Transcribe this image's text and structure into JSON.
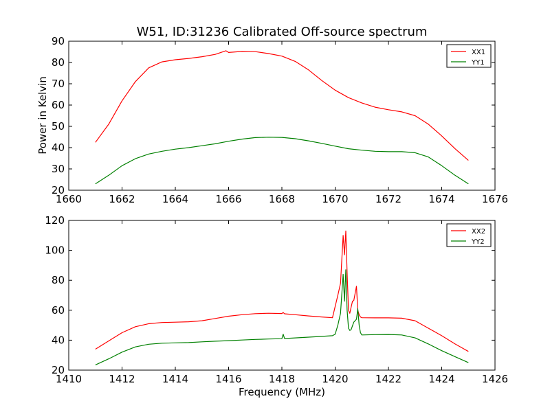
{
  "chart_data": [
    {
      "type": "line",
      "title": "W51, ID:31236 Calibrated Off-source spectrum",
      "xlabel": "",
      "ylabel": "Power in Kelvin",
      "xlim": [
        1660,
        1676
      ],
      "ylim": [
        20,
        90
      ],
      "xticks": [
        "1660",
        "1662",
        "1664",
        "1666",
        "1668",
        "1670",
        "1672",
        "1674",
        "1676"
      ],
      "yticks": [
        "20",
        "30",
        "40",
        "50",
        "60",
        "70",
        "80",
        "90"
      ],
      "grid": false,
      "legend_position": "top-right",
      "series": [
        {
          "name": "XX1",
          "color": "#ff0000",
          "x": [
            1661.0,
            1661.5,
            1662.0,
            1662.5,
            1663.0,
            1663.5,
            1664.0,
            1664.5,
            1665.0,
            1665.5,
            1665.9,
            1666.0,
            1666.5,
            1667.0,
            1667.5,
            1668.0,
            1668.5,
            1669.0,
            1669.5,
            1670.0,
            1670.5,
            1671.0,
            1671.5,
            1672.0,
            1672.5,
            1673.0,
            1673.5,
            1674.0,
            1674.5,
            1675.0
          ],
          "values": [
            42.5,
            51,
            62,
            71,
            77.5,
            80.3,
            81.3,
            81.9,
            82.7,
            83.8,
            85.5,
            84.7,
            85.2,
            85.1,
            84.2,
            83.0,
            80.5,
            76.5,
            71.5,
            67.0,
            63.5,
            61.0,
            59.0,
            57.8,
            56.8,
            55.0,
            51.0,
            45.5,
            39.5,
            34.0
          ]
        },
        {
          "name": "YY1",
          "color": "#008000",
          "x": [
            1661.0,
            1661.5,
            1662.0,
            1662.5,
            1663.0,
            1663.5,
            1664.0,
            1664.5,
            1665.0,
            1665.5,
            1666.0,
            1666.5,
            1667.0,
            1667.5,
            1668.0,
            1668.5,
            1669.0,
            1669.5,
            1670.0,
            1670.5,
            1671.0,
            1671.5,
            1672.0,
            1672.5,
            1673.0,
            1673.5,
            1674.0,
            1674.5,
            1675.0
          ],
          "values": [
            23.0,
            27.0,
            31.5,
            34.8,
            37.0,
            38.3,
            39.3,
            40.0,
            40.9,
            41.8,
            43.0,
            44.0,
            44.7,
            44.9,
            44.8,
            44.2,
            43.2,
            42.0,
            40.7,
            39.5,
            38.8,
            38.3,
            38.1,
            38.1,
            37.6,
            35.6,
            31.5,
            27.0,
            23.0
          ]
        }
      ]
    },
    {
      "type": "line",
      "title": "",
      "xlabel": "Frequency (MHz)",
      "ylabel": "",
      "xlim": [
        1410,
        1426
      ],
      "ylim": [
        20,
        120
      ],
      "xticks": [
        "1410",
        "1412",
        "1414",
        "1416",
        "1418",
        "1420",
        "1422",
        "1424",
        "1426"
      ],
      "yticks": [
        "20",
        "40",
        "60",
        "80",
        "100",
        "120"
      ],
      "grid": false,
      "legend_position": "top-right",
      "series": [
        {
          "name": "XX2",
          "color": "#ff0000",
          "x": [
            1411.0,
            1411.5,
            1412.0,
            1412.5,
            1413.0,
            1413.5,
            1414.0,
            1414.5,
            1415.0,
            1415.5,
            1416.0,
            1416.5,
            1417.0,
            1417.5,
            1418.0,
            1418.05,
            1418.1,
            1418.5,
            1419.0,
            1419.5,
            1419.9,
            1420.1,
            1420.2,
            1420.3,
            1420.35,
            1420.4,
            1420.45,
            1420.5,
            1420.55,
            1420.6,
            1420.65,
            1420.7,
            1420.8,
            1420.85,
            1420.9,
            1420.95,
            1421.0,
            1421.5,
            1422.0,
            1422.5,
            1423.0,
            1423.5,
            1424.0,
            1424.5,
            1425.0
          ],
          "values": [
            34.0,
            39.5,
            45.0,
            49.0,
            51.0,
            51.8,
            52.0,
            52.3,
            53.0,
            54.5,
            56.0,
            57.0,
            57.7,
            58.0,
            57.8,
            58.5,
            57.6,
            57.0,
            56.2,
            55.5,
            55.0,
            70.0,
            78.0,
            110.0,
            97.0,
            113.0,
            85.0,
            60.0,
            58.0,
            62.0,
            66.0,
            66.5,
            76.0,
            60.0,
            57.0,
            55.5,
            55.0,
            54.9,
            54.9,
            54.7,
            53.0,
            48.0,
            43.0,
            37.5,
            32.5
          ]
        },
        {
          "name": "YY2",
          "color": "#008000",
          "x": [
            1411.0,
            1411.5,
            1412.0,
            1412.5,
            1413.0,
            1413.5,
            1414.0,
            1414.5,
            1415.0,
            1415.5,
            1416.0,
            1416.5,
            1417.0,
            1417.5,
            1418.0,
            1418.05,
            1418.1,
            1418.5,
            1419.0,
            1419.5,
            1419.9,
            1420.0,
            1420.1,
            1420.2,
            1420.3,
            1420.35,
            1420.4,
            1420.45,
            1420.5,
            1420.55,
            1420.6,
            1420.7,
            1420.8,
            1420.85,
            1420.9,
            1420.95,
            1421.0,
            1421.5,
            1422.0,
            1422.5,
            1423.0,
            1423.5,
            1424.0,
            1424.5,
            1425.0
          ],
          "values": [
            23.5,
            27.5,
            32.0,
            35.5,
            37.3,
            38.0,
            38.2,
            38.4,
            38.9,
            39.3,
            39.7,
            40.1,
            40.5,
            40.8,
            41.0,
            44.0,
            41.1,
            41.5,
            42.0,
            42.5,
            43.0,
            44.0,
            50.0,
            58.0,
            84.0,
            66.0,
            87.0,
            60.0,
            48.0,
            46.5,
            47.0,
            52.0,
            54.0,
            61.0,
            50.0,
            45.0,
            43.5,
            43.7,
            43.8,
            43.5,
            41.5,
            37.5,
            33.0,
            29.0,
            25.0
          ]
        }
      ]
    }
  ]
}
